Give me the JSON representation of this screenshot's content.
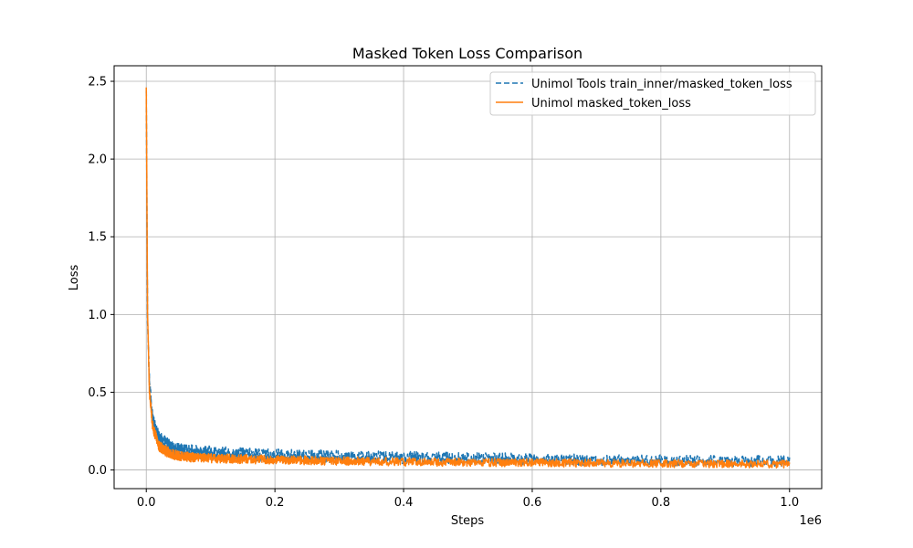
{
  "chart_data": {
    "type": "line",
    "title": "Masked Token Loss Comparison",
    "xlabel": "Steps",
    "ylabel": "Loss",
    "x_scale_label": "1e6",
    "xlim": [
      -50000,
      1050000
    ],
    "ylim": [
      -0.12,
      2.6
    ],
    "x_ticks": [
      0,
      200000,
      400000,
      600000,
      800000,
      1000000
    ],
    "x_tick_labels": [
      "0.0",
      "0.2",
      "0.4",
      "0.6",
      "0.8",
      "1.0"
    ],
    "y_ticks": [
      0,
      0.5,
      1.0,
      1.5,
      2.0,
      2.5
    ],
    "y_tick_labels": [
      "0.0",
      "0.5",
      "1.0",
      "1.5",
      "2.0",
      "2.5"
    ],
    "grid": true,
    "legend_position": "top-right",
    "series": [
      {
        "name": "Unimol Tools train_inner/masked_token_loss",
        "color": "#1f77b4",
        "style": "dashed",
        "x": [
          0,
          2000,
          5000,
          10000,
          20000,
          40000,
          60000,
          100000,
          150000,
          200000,
          300000,
          400000,
          500000,
          600000,
          700000,
          800000,
          900000,
          1000000
        ],
        "y": [
          2.44,
          0.95,
          0.55,
          0.32,
          0.2,
          0.14,
          0.12,
          0.11,
          0.1,
          0.095,
          0.085,
          0.08,
          0.075,
          0.07,
          0.065,
          0.06,
          0.058,
          0.055
        ],
        "noise": 0.045
      },
      {
        "name": "Unimol masked_token_loss",
        "color": "#ff7f0e",
        "style": "solid",
        "x": [
          0,
          2000,
          5000,
          10000,
          20000,
          40000,
          60000,
          100000,
          150000,
          200000,
          300000,
          400000,
          500000,
          600000,
          700000,
          800000,
          900000,
          1000000
        ],
        "y": [
          2.46,
          1.0,
          0.5,
          0.28,
          0.15,
          0.1,
          0.085,
          0.075,
          0.07,
          0.065,
          0.058,
          0.053,
          0.05,
          0.047,
          0.044,
          0.042,
          0.04,
          0.038
        ],
        "noise": 0.035
      }
    ]
  }
}
